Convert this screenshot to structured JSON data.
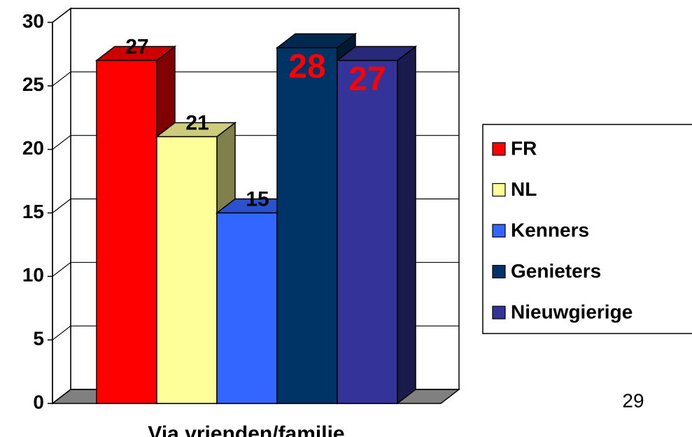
{
  "chart_data": {
    "type": "bar3d",
    "categories": [
      "Via vrienden/familie"
    ],
    "series": [
      {
        "name": "FR",
        "color": "#ff0000",
        "label_color": "#000000",
        "values": [
          27
        ]
      },
      {
        "name": "NL",
        "color": "#ffff99",
        "label_color": "#000000",
        "values": [
          21
        ]
      },
      {
        "name": "Kenners",
        "color": "#3366ff",
        "label_color": "#000000",
        "values": [
          15
        ]
      },
      {
        "name": "Genieters",
        "color": "#003366",
        "label_color": "#ff0000",
        "values": [
          28
        ]
      },
      {
        "name": "Nieuwgierige",
        "color": "#333399",
        "label_color": "#ff0000",
        "values": [
          27
        ]
      }
    ],
    "ylim": [
      0,
      30
    ],
    "yticks": [
      0,
      5,
      10,
      15,
      20,
      25,
      30
    ],
    "grid": true,
    "legend": "right",
    "page_number": "29"
  }
}
